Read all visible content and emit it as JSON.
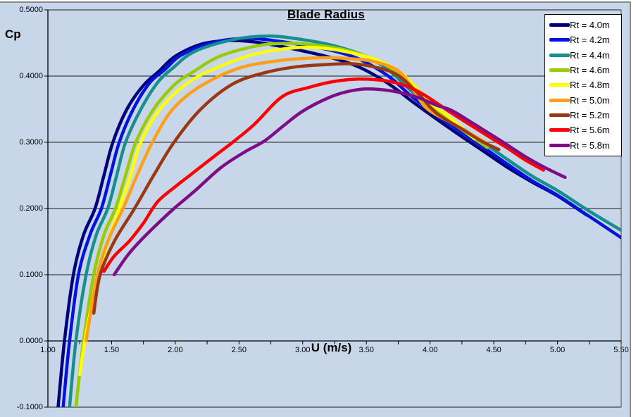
{
  "title": "Blade Radius",
  "x_axis_title": "U (m/s)",
  "y_axis_title": "Cp",
  "colors": {
    "chart_background": "#C8D6EA",
    "chart_border": "#8a8a8a",
    "gridline": "#1a1a1a",
    "axis_line": "#000000",
    "legend_background": "#ffffff",
    "legend_border": "#000000",
    "text": "#000000"
  },
  "chart_data": {
    "type": "line",
    "title": "Blade Radius",
    "xlabel": "U (m/s)",
    "ylabel": "Cp",
    "xlim": [
      1.0,
      5.5
    ],
    "ylim": [
      -0.1,
      0.5
    ],
    "grid": "horizontal",
    "legend_position": "top-right",
    "x_minor_tick_step": 0.25,
    "x_ticks": [
      {
        "value": 1.0,
        "label": "1.00"
      },
      {
        "value": 1.5,
        "label": "1.50"
      },
      {
        "value": 2.0,
        "label": "2.00"
      },
      {
        "value": 2.5,
        "label": "2.50"
      },
      {
        "value": 3.0,
        "label": "3.00"
      },
      {
        "value": 3.5,
        "label": "3.50"
      },
      {
        "value": 4.0,
        "label": "4.00"
      },
      {
        "value": 4.5,
        "label": "4.50"
      },
      {
        "value": 5.0,
        "label": "5.00"
      },
      {
        "value": 5.5,
        "label": "5.50"
      }
    ],
    "y_ticks": [
      {
        "value": 0.5,
        "label": "0.5000"
      },
      {
        "value": 0.4,
        "label": "0.4000"
      },
      {
        "value": 0.3,
        "label": "0.3000"
      },
      {
        "value": 0.2,
        "label": "0.2000"
      },
      {
        "value": 0.1,
        "label": "0.1000"
      },
      {
        "value": 0.0,
        "label": "0.0000"
      },
      {
        "value": -0.1,
        "label": "-0.1000"
      }
    ],
    "series": [
      {
        "name": "Rt = 4.0m",
        "color": "#00007A",
        "points": [
          [
            1.08,
            -0.1
          ],
          [
            1.13,
            0.0
          ],
          [
            1.2,
            0.1
          ],
          [
            1.28,
            0.16
          ],
          [
            1.37,
            0.2
          ],
          [
            1.44,
            0.25
          ],
          [
            1.51,
            0.3
          ],
          [
            1.62,
            0.35
          ],
          [
            1.75,
            0.386
          ],
          [
            1.87,
            0.407
          ],
          [
            2.0,
            0.43
          ],
          [
            2.2,
            0.448
          ],
          [
            2.4,
            0.4535
          ],
          [
            2.6,
            0.452
          ],
          [
            2.8,
            0.446
          ],
          [
            3.0,
            0.438
          ],
          [
            3.2,
            0.429
          ],
          [
            3.4,
            0.417
          ],
          [
            3.55,
            0.403
          ],
          [
            3.7,
            0.385
          ],
          [
            3.85,
            0.363
          ],
          [
            4.0,
            0.342
          ],
          [
            4.2,
            0.315
          ],
          [
            4.4,
            0.289
          ],
          [
            4.6,
            0.263
          ],
          [
            4.8,
            0.24
          ],
          [
            5.0,
            0.219
          ],
          [
            5.23,
            0.19
          ]
        ]
      },
      {
        "name": "Rt = 4.2m",
        "color": "#0013DF",
        "points": [
          [
            1.12,
            -0.1
          ],
          [
            1.17,
            0.0
          ],
          [
            1.24,
            0.1
          ],
          [
            1.33,
            0.16
          ],
          [
            1.42,
            0.2
          ],
          [
            1.49,
            0.25
          ],
          [
            1.56,
            0.3
          ],
          [
            1.67,
            0.35
          ],
          [
            1.8,
            0.39
          ],
          [
            1.92,
            0.41
          ],
          [
            2.05,
            0.432
          ],
          [
            2.3,
            0.451
          ],
          [
            2.56,
            0.457
          ],
          [
            2.8,
            0.453
          ],
          [
            3.0,
            0.447
          ],
          [
            3.2,
            0.44
          ],
          [
            3.4,
            0.429
          ],
          [
            3.55,
            0.415
          ],
          [
            3.7,
            0.396
          ],
          [
            3.85,
            0.37
          ],
          [
            4.0,
            0.348
          ],
          [
            4.2,
            0.321
          ],
          [
            4.4,
            0.295
          ],
          [
            4.6,
            0.268
          ],
          [
            4.8,
            0.242
          ],
          [
            5.0,
            0.22
          ],
          [
            5.25,
            0.188
          ],
          [
            5.5,
            0.156
          ]
        ]
      },
      {
        "name": "Rt = 4.4m",
        "color": "#178F8F",
        "points": [
          [
            1.17,
            -0.1
          ],
          [
            1.22,
            0.0
          ],
          [
            1.3,
            0.1
          ],
          [
            1.38,
            0.16
          ],
          [
            1.47,
            0.2
          ],
          [
            1.54,
            0.25
          ],
          [
            1.61,
            0.3
          ],
          [
            1.73,
            0.35
          ],
          [
            1.86,
            0.39
          ],
          [
            1.98,
            0.412
          ],
          [
            2.15,
            0.437
          ],
          [
            2.45,
            0.455
          ],
          [
            2.74,
            0.4605
          ],
          [
            3.0,
            0.455
          ],
          [
            3.2,
            0.448
          ],
          [
            3.4,
            0.437
          ],
          [
            3.55,
            0.425
          ],
          [
            3.7,
            0.405
          ],
          [
            3.85,
            0.378
          ],
          [
            4.0,
            0.355
          ],
          [
            4.2,
            0.328
          ],
          [
            4.4,
            0.302
          ],
          [
            4.6,
            0.275
          ],
          [
            4.8,
            0.249
          ],
          [
            5.0,
            0.227
          ],
          [
            5.25,
            0.196
          ],
          [
            5.5,
            0.167
          ]
        ]
      },
      {
        "name": "Rt = 4.6m",
        "color": "#99CC00",
        "points": [
          [
            1.22,
            -0.1
          ],
          [
            1.28,
            0.0
          ],
          [
            1.36,
            0.1
          ],
          [
            1.44,
            0.16
          ],
          [
            1.53,
            0.2
          ],
          [
            1.61,
            0.25
          ],
          [
            1.69,
            0.3
          ],
          [
            1.83,
            0.35
          ],
          [
            2.0,
            0.388
          ],
          [
            2.13,
            0.405
          ],
          [
            2.35,
            0.43
          ],
          [
            2.65,
            0.446
          ],
          [
            2.9,
            0.4495
          ],
          [
            3.1,
            0.447
          ],
          [
            3.3,
            0.441
          ],
          [
            3.5,
            0.43
          ],
          [
            3.65,
            0.417
          ],
          [
            3.8,
            0.395
          ],
          [
            3.95,
            0.362
          ],
          [
            4.15,
            0.333
          ],
          [
            4.3,
            0.312
          ],
          [
            4.45,
            0.292
          ]
        ]
      },
      {
        "name": "Rt = 4.8m",
        "color": "#FFFF00",
        "points": [
          [
            1.25,
            -0.051
          ],
          [
            1.29,
            0.0
          ],
          [
            1.34,
            0.05
          ],
          [
            1.4,
            0.1
          ],
          [
            1.48,
            0.155
          ],
          [
            1.56,
            0.2
          ],
          [
            1.65,
            0.25
          ],
          [
            1.73,
            0.3
          ],
          [
            1.88,
            0.35
          ],
          [
            2.1,
            0.39
          ],
          [
            2.32,
            0.412
          ],
          [
            2.6,
            0.432
          ],
          [
            2.85,
            0.441
          ],
          [
            3.05,
            0.4435
          ],
          [
            3.25,
            0.44
          ],
          [
            3.45,
            0.432
          ],
          [
            3.6,
            0.423
          ],
          [
            3.75,
            0.408
          ],
          [
            3.88,
            0.385
          ],
          [
            4.0,
            0.36
          ],
          [
            4.15,
            0.338
          ],
          [
            4.35,
            0.305
          ]
        ]
      },
      {
        "name": "Rt = 5.0m",
        "color": "#FF9F17",
        "points": [
          [
            1.3,
            0.0
          ],
          [
            1.39,
            0.1
          ],
          [
            1.48,
            0.155
          ],
          [
            1.59,
            0.2
          ],
          [
            1.7,
            0.25
          ],
          [
            1.82,
            0.3
          ],
          [
            1.98,
            0.35
          ],
          [
            2.2,
            0.385
          ],
          [
            2.5,
            0.412
          ],
          [
            2.8,
            0.423
          ],
          [
            3.0,
            0.4265
          ],
          [
            3.2,
            0.4278
          ],
          [
            3.45,
            0.425
          ],
          [
            3.6,
            0.42
          ],
          [
            3.75,
            0.408
          ],
          [
            3.85,
            0.385
          ],
          [
            3.97,
            0.352
          ],
          [
            4.15,
            0.331
          ],
          [
            4.3,
            0.315
          ],
          [
            4.45,
            0.298
          ]
        ]
      },
      {
        "name": "Rt = 5.2m",
        "color": "#993812",
        "points": [
          [
            1.36,
            0.042
          ],
          [
            1.41,
            0.1
          ],
          [
            1.52,
            0.15
          ],
          [
            1.68,
            0.2
          ],
          [
            1.83,
            0.25
          ],
          [
            1.99,
            0.3
          ],
          [
            2.2,
            0.35
          ],
          [
            2.45,
            0.388
          ],
          [
            2.7,
            0.405
          ],
          [
            2.95,
            0.414
          ],
          [
            3.2,
            0.4175
          ],
          [
            3.4,
            0.4185
          ],
          [
            3.6,
            0.412
          ],
          [
            3.75,
            0.401
          ],
          [
            3.9,
            0.375
          ],
          [
            4.05,
            0.344
          ],
          [
            4.25,
            0.32
          ],
          [
            4.4,
            0.302
          ],
          [
            4.54,
            0.289
          ]
        ]
      },
      {
        "name": "Rt = 5.6m",
        "color": "#FE0000",
        "points": [
          [
            1.44,
            0.105
          ],
          [
            1.52,
            0.128
          ],
          [
            1.64,
            0.151
          ],
          [
            1.75,
            0.178
          ],
          [
            1.86,
            0.21
          ],
          [
            2.0,
            0.233
          ],
          [
            2.12,
            0.251
          ],
          [
            2.3,
            0.278
          ],
          [
            2.45,
            0.3
          ],
          [
            2.62,
            0.327
          ],
          [
            2.84,
            0.369
          ],
          [
            3.05,
            0.383
          ],
          [
            3.25,
            0.392
          ],
          [
            3.45,
            0.3955
          ],
          [
            3.65,
            0.393
          ],
          [
            3.8,
            0.386
          ],
          [
            3.95,
            0.372
          ],
          [
            4.17,
            0.344
          ],
          [
            4.4,
            0.316
          ],
          [
            4.6,
            0.292
          ],
          [
            4.75,
            0.273
          ],
          [
            4.89,
            0.258
          ]
        ]
      },
      {
        "name": "Rt = 5.8m",
        "color": "#7F0E86",
        "points": [
          [
            1.52,
            0.1
          ],
          [
            1.62,
            0.128
          ],
          [
            1.71,
            0.148
          ],
          [
            1.85,
            0.175
          ],
          [
            1.99,
            0.2
          ],
          [
            2.15,
            0.226
          ],
          [
            2.36,
            0.262
          ],
          [
            2.55,
            0.286
          ],
          [
            2.7,
            0.302
          ],
          [
            2.85,
            0.325
          ],
          [
            3.0,
            0.347
          ],
          [
            3.2,
            0.367
          ],
          [
            3.35,
            0.3765
          ],
          [
            3.5,
            0.3805
          ],
          [
            3.7,
            0.3775
          ],
          [
            3.9,
            0.368
          ],
          [
            4.05,
            0.356
          ],
          [
            4.17,
            0.348
          ],
          [
            4.35,
            0.327
          ],
          [
            4.55,
            0.303
          ],
          [
            4.75,
            0.278
          ],
          [
            4.9,
            0.262
          ],
          [
            5.06,
            0.247
          ]
        ]
      }
    ]
  }
}
